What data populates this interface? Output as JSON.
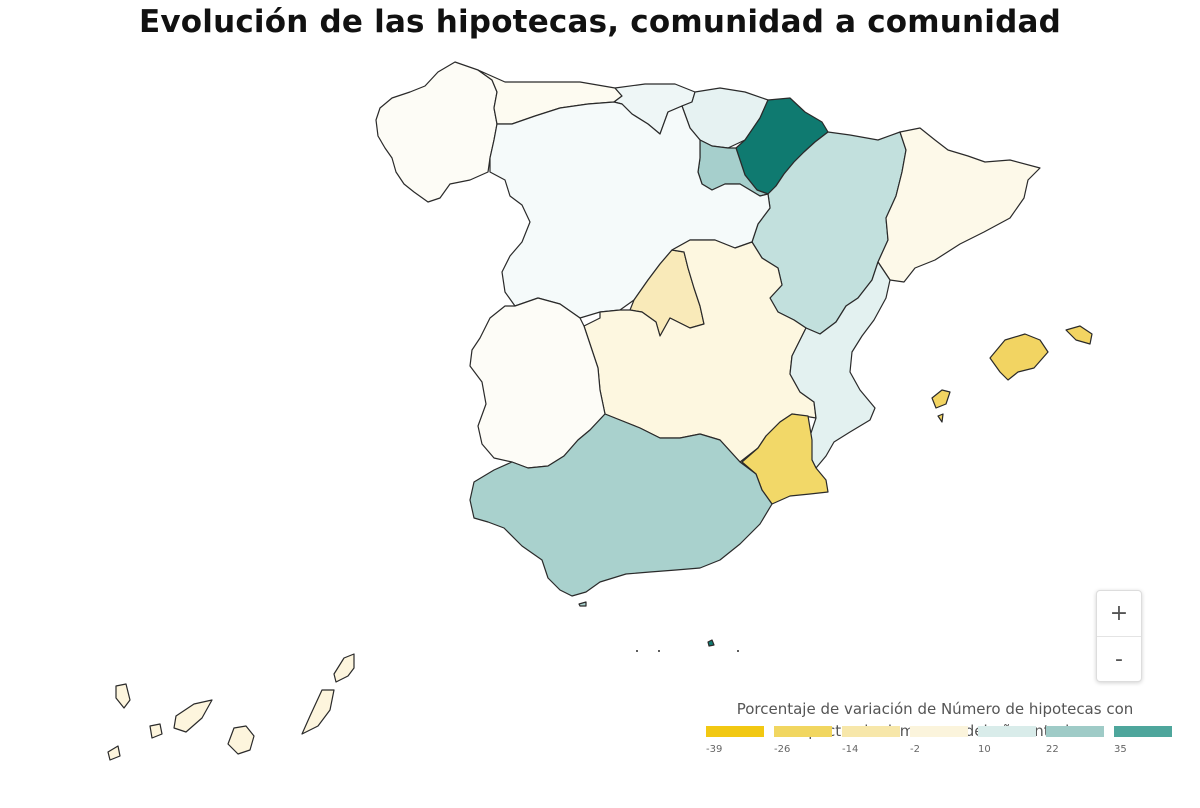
{
  "title": "Evolución de las hipotecas, comunidad a comunidad",
  "zoom": {
    "in_label": "+",
    "out_label": "-"
  },
  "legend": {
    "title_line1": "Porcentaje de variación de Número de hipotecas con",
    "title_line2": "respecto al mismo mes del año anterior",
    "ticks": [
      "-39",
      "-26",
      "-14",
      "-2",
      "10",
      "22",
      "35"
    ],
    "colors": [
      "#f2c812",
      "#f1d660",
      "#f7e7aa",
      "#fbf4dc",
      "#d9ecea",
      "#9fcbc7",
      "#4ea69c"
    ]
  },
  "colors": {
    "galicia": "#fdfcf6",
    "asturias": "#fdfbf1",
    "cantabria": "#eef6f6",
    "pais_vasco": "#e6f2f2",
    "navarra": "#0f7a70",
    "la_rioja": "#a6cfcc",
    "aragon": "#c2e0dd",
    "cataluna": "#fdf9e9",
    "castilla_leon": "#f5fafa",
    "madrid": "#f9eab9",
    "castilla_la_mancha": "#fdf7e0",
    "extremadura": "#fdfcf7",
    "valencia": "#e3f1f0",
    "murcia": "#f2d868",
    "andalucia": "#a9d1cd",
    "baleares": "#f2d462",
    "canarias": "#fdf5dd"
  }
}
